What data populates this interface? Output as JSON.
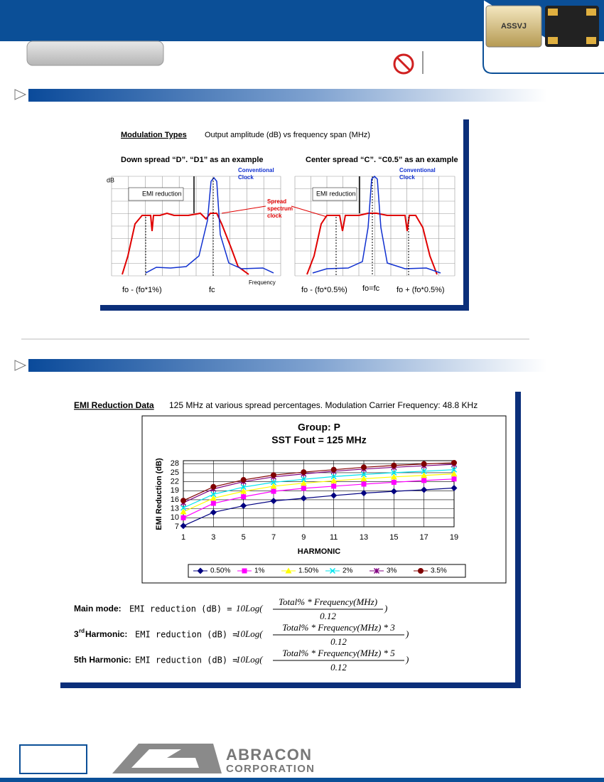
{
  "header": {
    "chip_label": "ASSVJ"
  },
  "figure1": {
    "title": "Modulation Types",
    "subtitle": "Output amplitude (dB) vs frequency span (MHz)",
    "left_heading": "Down spread “D”. “D1” as an example",
    "right_heading": "Center spread “C”. “C0.5” as an example",
    "db_label": "dB",
    "emi_label": "EMI reduction",
    "conventional": [
      "Conventional",
      "Clock"
    ],
    "spread": [
      "Spread",
      "spectrum",
      "clock"
    ],
    "frequency": "Frequency",
    "left_low": "fo - (fo*1%)",
    "left_center": "fc",
    "right_low": "fo - (fo*0.5%)",
    "right_center": "fo=fc",
    "right_high": "fo + (fo*0.5%)"
  },
  "section2": {
    "heading": "EMI Reduction Data",
    "description": "125 MHz at various spread percentages. Modulation Carrier Frequency: 48.8 KHz"
  },
  "chart_data": {
    "type": "line",
    "title": "Group: P",
    "subtitle": "SST Fout = 125 MHz",
    "y_label": "EMI Reduction (dB)",
    "x_label": "HARMONIC",
    "x": [
      1,
      3,
      5,
      7,
      9,
      11,
      13,
      15,
      17,
      19
    ],
    "xlim": [
      1,
      19
    ],
    "xticks": [
      1,
      3,
      5,
      7,
      9,
      11,
      13,
      15,
      17,
      19
    ],
    "ylim": [
      7,
      29
    ],
    "yticks": [
      7,
      10,
      13,
      16,
      19,
      22,
      25,
      28
    ],
    "grid": true,
    "series": [
      {
        "name": "0.50%",
        "color": "#000080",
        "marker": "diamond",
        "values": [
          7.3,
          11.8,
          14,
          15.6,
          16.5,
          17.4,
          18.2,
          18.8,
          19.3,
          19.9
        ]
      },
      {
        "name": "1%",
        "color": "#ff00ff",
        "marker": "square",
        "values": [
          10,
          14.8,
          17,
          18.8,
          19.8,
          20.5,
          21.2,
          21.8,
          22.4,
          22.9
        ]
      },
      {
        "name": "1.50%",
        "color": "#ffff00",
        "marker": "triangle",
        "values": [
          12,
          16.5,
          18.8,
          20.5,
          21.5,
          22.3,
          23,
          23.6,
          24.1,
          24.6
        ]
      },
      {
        "name": "2%",
        "color": "#00e5ee",
        "marker": "x",
        "values": [
          13.3,
          17.8,
          20.2,
          21.8,
          22.8,
          23.7,
          24.4,
          25,
          25.5,
          26
        ]
      },
      {
        "name": "3%",
        "color": "#800080",
        "marker": "star",
        "values": [
          15,
          19.6,
          22,
          23.6,
          24.6,
          25.5,
          26.2,
          26.8,
          27.3,
          27.8
        ]
      },
      {
        "name": "3.5%",
        "color": "#800000",
        "marker": "circle",
        "values": [
          15.7,
          20.3,
          22.6,
          24.2,
          25.2,
          26,
          26.8,
          27.4,
          27.9,
          28.3
        ]
      }
    ]
  },
  "formulas": [
    {
      "label": "Main mode:",
      "lhs": "EMI reduction (dB) =",
      "func": "10Log(",
      "numerator": "Total% * Frequency(MHz)",
      "denominator": "0.12",
      "close": ")"
    },
    {
      "label_num": "3",
      "label_sup": "rd",
      "label_rest": " Harmonic:",
      "lhs": "EMI reduction (dB) =",
      "func": "10Log(",
      "numerator": "Total% * Frequency(MHz) * 3",
      "denominator": "0.12",
      "close": ")"
    },
    {
      "label": "5th Harmonic:",
      "lhs": "EMI reduction (dB) =",
      "func": "10Log(",
      "numerator": "Total% * Frequency(MHz) * 5",
      "denominator": "0.12",
      "close": ")"
    }
  ],
  "footer": {
    "company": "ABRACON",
    "company_sub": "CORPORATION"
  }
}
